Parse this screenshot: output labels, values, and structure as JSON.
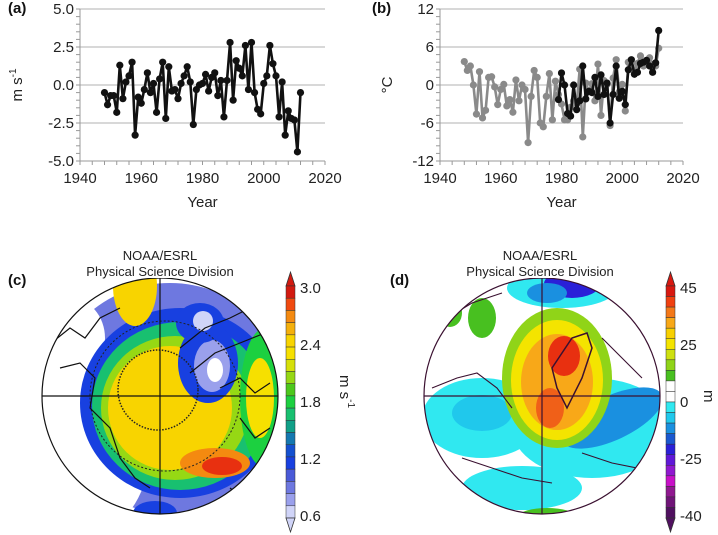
{
  "chart_data": [
    {
      "id": "a",
      "type": "line",
      "panel_label": "(a)",
      "title": "",
      "xlabel": "Year",
      "ylabel": "m s-1",
      "ylabel_main": "m s",
      "ylabel_sup": "-1",
      "xlim": [
        1940,
        2020
      ],
      "ylim": [
        -5.0,
        5.0
      ],
      "xticks": [
        "1940",
        "1960",
        "1980",
        "2000",
        "2020"
      ],
      "yticks": [
        "5.0",
        "2.5",
        "0.0",
        "-2.5",
        "-5.0"
      ],
      "ytick_values": [
        5.0,
        2.5,
        0.0,
        -2.5,
        -5.0
      ],
      "grid": true,
      "series": [
        {
          "name": "series",
          "color": "#111111",
          "x": [
            1948,
            1949,
            1950,
            1951,
            1952,
            1953,
            1954,
            1955,
            1956,
            1957,
            1958,
            1959,
            1960,
            1961,
            1962,
            1963,
            1964,
            1965,
            1966,
            1967,
            1968,
            1969,
            1970,
            1971,
            1972,
            1973,
            1974,
            1975,
            1976,
            1977,
            1978,
            1979,
            1980,
            1981,
            1982,
            1983,
            1984,
            1985,
            1986,
            1987,
            1988,
            1989,
            1990,
            1991,
            1992,
            1993,
            1994,
            1995,
            1996,
            1997,
            1998,
            1999,
            2000,
            2001,
            2002,
            2003,
            2004,
            2005,
            2006,
            2007,
            2008,
            2009,
            2010,
            2011,
            2012
          ],
          "y": [
            -0.5,
            -1.3,
            -0.7,
            -0.7,
            -1.8,
            1.3,
            -0.9,
            0.2,
            0.6,
            1.5,
            -3.3,
            -0.8,
            -1.2,
            -0.3,
            0.8,
            -0.5,
            0.1,
            -1.8,
            0.4,
            1.5,
            -2.2,
            1.2,
            -0.4,
            -0.3,
            -0.9,
            0.1,
            0.6,
            1.2,
            0.2,
            -2.6,
            -0.3,
            0.0,
            0.1,
            0.7,
            -0.4,
            0.5,
            0.8,
            -0.7,
            0.3,
            -2.1,
            0.3,
            2.8,
            -1.0,
            1.6,
            1.1,
            0.6,
            2.6,
            -0.3,
            2.8,
            -0.5,
            -1.6,
            -1.9,
            0.1,
            0.6,
            2.6,
            1.4,
            0.6,
            -2.1,
            0.2,
            -3.3,
            -1.7,
            -2.2,
            -2.3,
            -4.4,
            -0.5
          ]
        }
      ]
    },
    {
      "id": "b",
      "type": "line",
      "panel_label": "(b)",
      "title": "",
      "xlabel": "Year",
      "ylabel": "°C",
      "xlim": [
        1940,
        2020
      ],
      "ylim": [
        -12,
        12
      ],
      "xticks": [
        "1940",
        "1960",
        "1980",
        "2000",
        "2020"
      ],
      "yticks": [
        "12",
        "6",
        "0",
        "-6",
        "-12"
      ],
      "ytick_values": [
        12,
        6,
        0,
        -6,
        -12
      ],
      "grid": true,
      "series": [
        {
          "name": "gray series",
          "color": "#8a8a8a",
          "x": [
            1948,
            1949,
            1950,
            1951,
            1952,
            1953,
            1954,
            1955,
            1956,
            1957,
            1958,
            1959,
            1960,
            1961,
            1962,
            1963,
            1964,
            1965,
            1966,
            1967,
            1968,
            1969,
            1970,
            1971,
            1972,
            1973,
            1974,
            1975,
            1976,
            1977,
            1978,
            1979,
            1980,
            1981,
            1982,
            1983,
            1984,
            1985,
            1986,
            1987,
            1988,
            1989,
            1990,
            1991,
            1992,
            1993,
            1994,
            1995,
            1996,
            1997,
            1998,
            1999,
            2000,
            2001,
            2002,
            2003,
            2004,
            2005,
            2006,
            2007,
            2008,
            2009,
            2010,
            2011,
            2012
          ],
          "y": [
            3.7,
            2.3,
            3.0,
            0.0,
            -4.6,
            2.1,
            -5.2,
            -4.0,
            1.2,
            1.3,
            -0.3,
            -3.1,
            -0.7,
            0.1,
            -3.3,
            -2.3,
            -4.3,
            0.8,
            -2.5,
            0.0,
            -0.7,
            -9.1,
            -1.8,
            2.3,
            1.2,
            -6.0,
            -6.6,
            -1.8,
            1.8,
            -5.5,
            0.6,
            -1.5,
            -3.0,
            -5.5,
            -5.5,
            -3.5,
            -2.5,
            -3.0,
            2.5,
            -8.2,
            0.3,
            -1.0,
            0.2,
            -2.5,
            3.3,
            -4.8,
            0.7,
            0.1,
            -6.4,
            1.1,
            4.0,
            -1.1,
            0.1,
            -4.1,
            3.6,
            2.8,
            2.0,
            3.4,
            4.6,
            3.0,
            3.5,
            4.3,
            3.2,
            3.0,
            5.8
          ]
        },
        {
          "name": "black series",
          "color": "#111111",
          "x": [
            1979,
            1980,
            1981,
            1982,
            1983,
            1984,
            1985,
            1986,
            1987,
            1988,
            1989,
            1990,
            1991,
            1992,
            1993,
            1994,
            1995,
            1996,
            1997,
            1998,
            1999,
            2000,
            2001,
            2002,
            2003,
            2004,
            2005,
            2006,
            2007,
            2008,
            2009,
            2010,
            2011,
            2012
          ],
          "y": [
            -2.3,
            1.9,
            0.0,
            -4.5,
            -4.9,
            0.0,
            -3.9,
            -2.5,
            3.0,
            -2.2,
            -1.0,
            -1.2,
            1.2,
            -1.8,
            1.6,
            -1.5,
            0.3,
            -6.0,
            -1.5,
            3.0,
            -2.1,
            -1.0,
            -3.1,
            2.4,
            4.0,
            1.7,
            2.0,
            3.4,
            3.6,
            3.9,
            3.0,
            2.0,
            3.5,
            8.6
          ]
        }
      ]
    },
    {
      "id": "c",
      "type": "heatmap",
      "panel_label": "(c)",
      "title_line1": "NOAA/ESRL",
      "title_line2": "Physical Science Division",
      "projection": "north polar stereographic",
      "colorbar_label": "m s-1",
      "colorbar_label_main": "m s",
      "colorbar_label_sup": "-1",
      "colorbar_range": [
        0.6,
        3.0
      ],
      "colorbar_ticks": [
        "3.0",
        "2.4",
        "1.8",
        "1.2",
        "0.6"
      ],
      "colorbar_colors": [
        "#d21a10",
        "#f04a10",
        "#f48a10",
        "#f4b00c",
        "#f8d400",
        "#f6e000",
        "#d6e00a",
        "#96d814",
        "#4cc81c",
        "#1cd040",
        "#18c070",
        "#10a088",
        "#1478b0",
        "#1450d0",
        "#1840e0",
        "#4a5ad8",
        "#6e78e0",
        "#9aa0ec",
        "#d0d4f8"
      ]
    },
    {
      "id": "d",
      "type": "heatmap",
      "panel_label": "(d)",
      "title_line1": "NOAA/ESRL",
      "title_line2": "Physical Science Division",
      "projection": "north polar stereographic",
      "colorbar_label": "m",
      "colorbar_range": [
        -40,
        45
      ],
      "colorbar_ticks": [
        "45",
        "25",
        "0",
        "-25",
        "-40"
      ],
      "colorbar_colors": [
        "#d81810",
        "#f04010",
        "#f47818",
        "#f8a818",
        "#f8d000",
        "#f4e400",
        "#cee010",
        "#90d418",
        "#48c020",
        "#ffffff",
        "#ffffff",
        "#30e8f0",
        "#20c8ec",
        "#1a90e0",
        "#1a58d0",
        "#2a20d8",
        "#6018d8",
        "#9018d0",
        "#c810c8",
        "#901890",
        "#701478",
        "#501060"
      ]
    }
  ]
}
